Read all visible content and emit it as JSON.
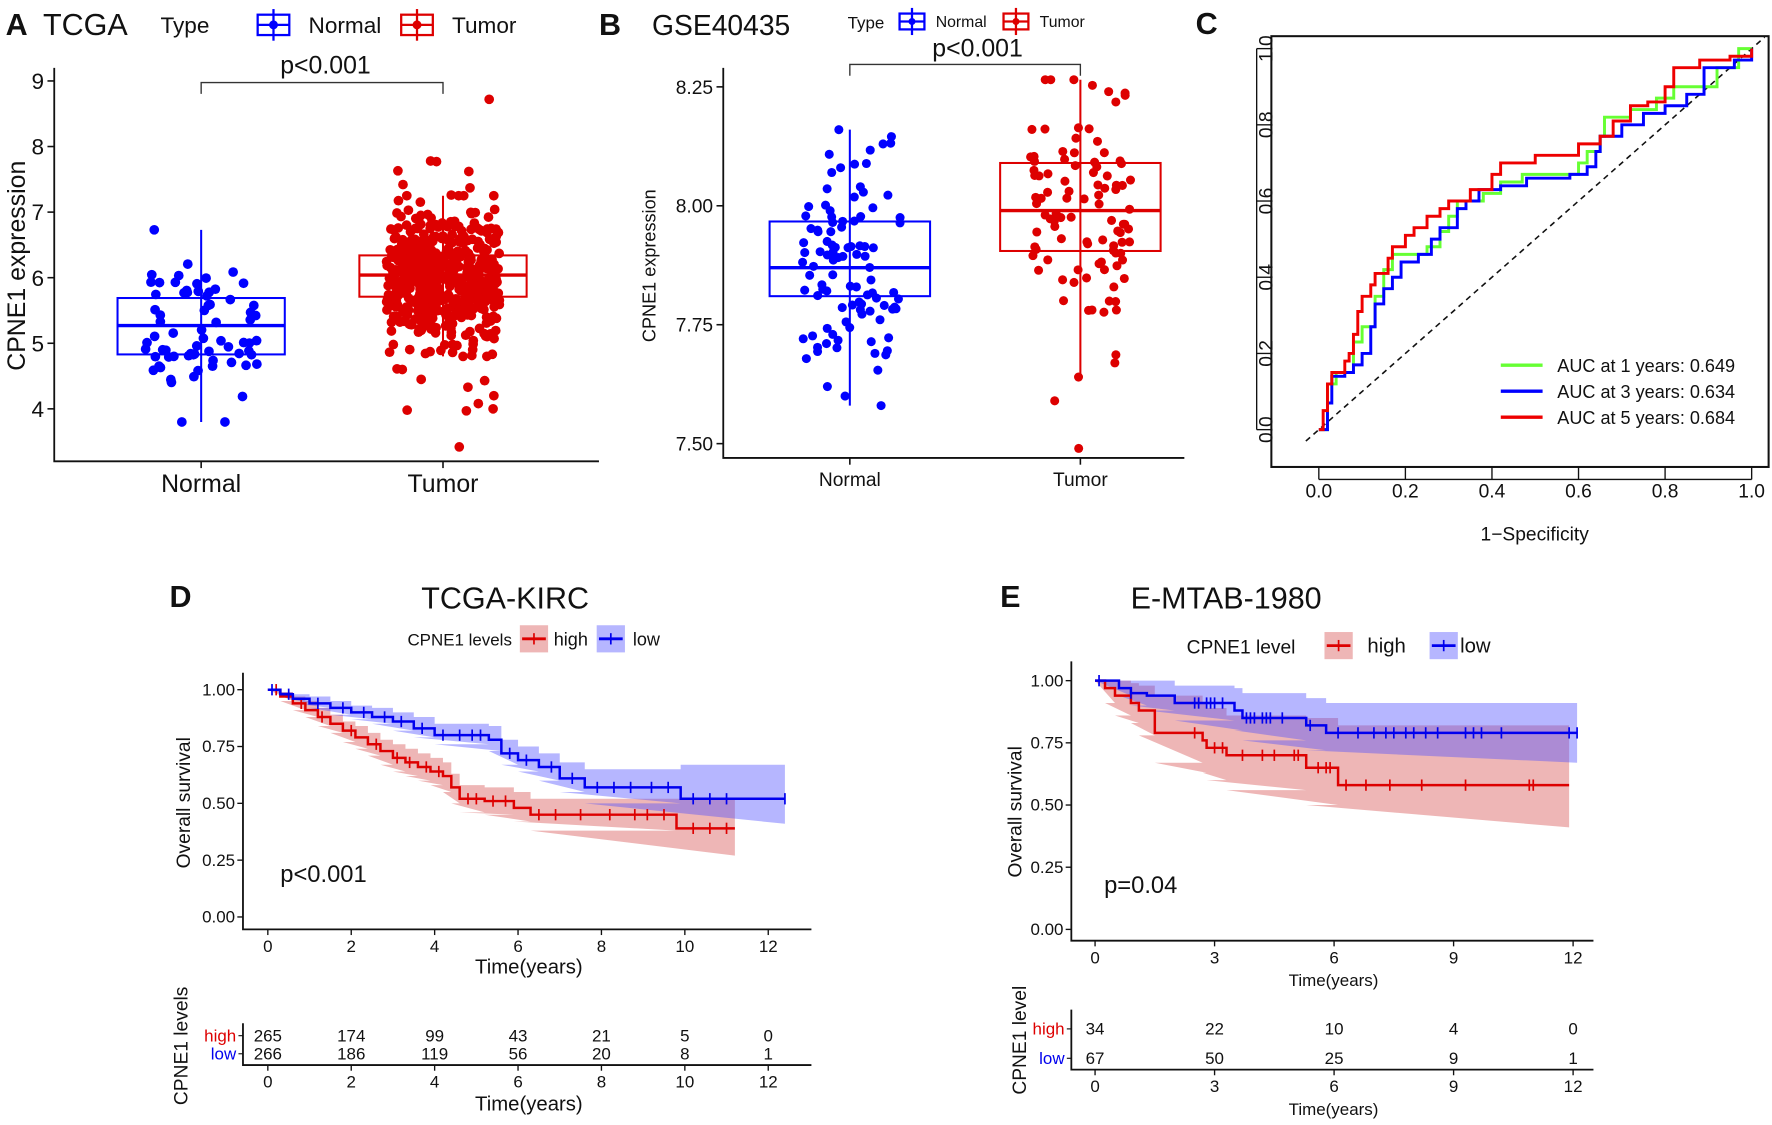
{
  "chart_data": [
    {
      "panel": "A",
      "type": "box",
      "title": "TCGA",
      "ylabel": "CPNE1 expression",
      "legend_title": "Type",
      "legend_position": "top",
      "categories": [
        "Normal",
        "Tumor"
      ],
      "yticks": [
        "4",
        "5",
        "6",
        "7",
        "8",
        "9"
      ],
      "ylim": [
        3.2,
        9.2
      ],
      "annotation": "p<0.001",
      "series": [
        {
          "name": "Normal",
          "color": "#0000FF",
          "box": {
            "whisker_low": 3.8,
            "q1": 4.83,
            "median": 5.27,
            "q3": 5.69,
            "whisker_high": 6.73
          },
          "center": 5.25,
          "spread": 0.6,
          "outliers": [
            3.8,
            3.8,
            6.73
          ]
        },
        {
          "name": "Tumor",
          "color": "#DD0000",
          "box": {
            "whisker_low": 4.8,
            "q1": 5.71,
            "median": 6.04,
            "q3": 6.34,
            "whisker_high": 7.25
          },
          "center": 6.02,
          "spread": 0.5,
          "outliers": [
            8.72,
            7.78,
            7.77,
            7.63,
            7.62,
            7.42,
            7.37,
            7.26,
            3.42,
            3.97,
            3.98,
            4.0,
            4.08,
            4.2,
            4.33,
            4.43,
            4.45,
            4.6,
            4.61
          ]
        }
      ]
    },
    {
      "panel": "B",
      "type": "box",
      "title": "GSE40435",
      "ylabel": "CPNE1 expression",
      "legend_title": "Type",
      "legend_position": "top",
      "categories": [
        "Normal",
        "Tumor"
      ],
      "yticks": [
        "7.50",
        "7.75",
        "8.00",
        "8.25"
      ],
      "ylim": [
        7.47,
        8.29
      ],
      "annotation": "p<0.001",
      "series": [
        {
          "name": "Normal",
          "color": "#0000FF",
          "box": {
            "whisker_low": 7.58,
            "q1": 7.81,
            "median": 7.87,
            "q3": 7.967,
            "whisker_high": 8.16
          },
          "center": 7.88,
          "spread": 0.12,
          "outliers": [
            7.58,
            7.6,
            7.62,
            8.16,
            8.13,
            8.08
          ]
        },
        {
          "name": "Tumor",
          "color": "#DD0000",
          "box": {
            "whisker_low": 7.64,
            "q1": 7.905,
            "median": 7.99,
            "q3": 8.09,
            "whisker_high": 8.265
          },
          "center": 7.99,
          "spread": 0.13,
          "outliers": [
            7.49,
            7.59,
            7.64,
            8.265,
            8.265,
            8.24
          ]
        }
      ]
    },
    {
      "panel": "C",
      "type": "line",
      "xlabel": "1−Specificity",
      "xticks": [
        "0.0",
        "0.2",
        "0.4",
        "0.6",
        "0.8",
        "1.0"
      ],
      "yticks": [
        "0.0",
        "0.2",
        "0.4",
        "0.6",
        "0.8",
        "1.0"
      ],
      "xlim": [
        0,
        1
      ],
      "ylim": [
        0,
        1
      ],
      "legend_position": "bottom-right",
      "reference_line": "diagonal dashed",
      "series": [
        {
          "name": "AUC at 1 years: 0.649",
          "color": "#66FF33",
          "x": [
            0,
            0.02,
            0.04,
            0.08,
            0.1,
            0.13,
            0.15,
            0.17,
            0.23,
            0.25,
            0.28,
            0.3,
            0.32,
            0.38,
            0.42,
            0.47,
            0.58,
            0.6,
            0.62,
            0.65,
            0.66,
            0.72,
            0.78,
            0.82,
            0.9,
            0.92,
            0.97,
            1
          ],
          "y": [
            0,
            0.12,
            0.15,
            0.23,
            0.27,
            0.35,
            0.42,
            0.46,
            0.46,
            0.48,
            0.52,
            0.56,
            0.6,
            0.62,
            0.65,
            0.67,
            0.67,
            0.7,
            0.73,
            0.77,
            0.82,
            0.84,
            0.87,
            0.9,
            0.9,
            0.95,
            1,
            1
          ]
        },
        {
          "name": "AUC at 3 years: 0.634",
          "color": "#0000FF",
          "x": [
            0,
            0.02,
            0.03,
            0.06,
            0.08,
            0.1,
            0.12,
            0.13,
            0.15,
            0.17,
            0.19,
            0.23,
            0.26,
            0.28,
            0.31,
            0.32,
            0.34,
            0.37,
            0.42,
            0.48,
            0.58,
            0.62,
            0.64,
            0.65,
            0.7,
            0.75,
            0.8,
            0.85,
            0.89,
            0.96,
            1
          ],
          "y": [
            0,
            0.07,
            0.14,
            0.15,
            0.17,
            0.2,
            0.27,
            0.33,
            0.37,
            0.4,
            0.44,
            0.46,
            0.5,
            0.53,
            0.53,
            0.58,
            0.6,
            0.63,
            0.64,
            0.66,
            0.67,
            0.69,
            0.73,
            0.77,
            0.8,
            0.83,
            0.85,
            0.88,
            0.95,
            0.97,
            1
          ]
        },
        {
          "name": "AUC at 5 years: 0.684",
          "color": "#EE0000",
          "x": [
            0,
            0.01,
            0.02,
            0.03,
            0.06,
            0.07,
            0.08,
            0.09,
            0.1,
            0.12,
            0.13,
            0.16,
            0.17,
            0.2,
            0.22,
            0.25,
            0.28,
            0.3,
            0.35,
            0.4,
            0.42,
            0.5,
            0.55,
            0.6,
            0.65,
            0.68,
            0.72,
            0.76,
            0.8,
            0.82,
            0.88,
            0.95,
            1
          ],
          "y": [
            0,
            0.05,
            0.12,
            0.15,
            0.18,
            0.2,
            0.25,
            0.31,
            0.35,
            0.38,
            0.41,
            0.45,
            0.48,
            0.51,
            0.53,
            0.56,
            0.58,
            0.6,
            0.63,
            0.67,
            0.7,
            0.72,
            0.72,
            0.75,
            0.77,
            0.81,
            0.85,
            0.86,
            0.9,
            0.95,
            0.97,
            0.98,
            1
          ]
        }
      ]
    },
    {
      "panel": "D",
      "type": "line",
      "subtype": "kaplan-meier",
      "title": "TCGA-KIRC",
      "xlabel": "Time(years)",
      "ylabel": "Overall survival",
      "legend_title": "CPNE1 levels",
      "legend_position": "top",
      "xticks": [
        "0",
        "2",
        "4",
        "6",
        "8",
        "10",
        "12"
      ],
      "yticks": [
        "0.00",
        "0.25",
        "0.50",
        "0.75",
        "1.00"
      ],
      "xlim": [
        0,
        12.8
      ],
      "ylim": [
        0,
        1
      ],
      "annotation": "p<0.001",
      "series": [
        {
          "name": "high",
          "color": "#DD0000",
          "fill": "rgba(215,80,80,0.42)",
          "t": [
            0,
            0.3,
            0.6,
            0.9,
            1.2,
            1.5,
            1.8,
            2.1,
            2.4,
            2.7,
            3.0,
            3.3,
            3.6,
            3.9,
            4.2,
            4.4,
            4.6,
            5.2,
            5.9,
            6.3,
            9.8,
            11.2
          ],
          "surv": [
            1,
            0.97,
            0.94,
            0.91,
            0.88,
            0.85,
            0.82,
            0.79,
            0.76,
            0.73,
            0.7,
            0.68,
            0.66,
            0.64,
            0.62,
            0.57,
            0.52,
            0.51,
            0.48,
            0.45,
            0.39,
            0.39
          ],
          "lower": [
            1,
            0.95,
            0.91,
            0.88,
            0.84,
            0.81,
            0.77,
            0.74,
            0.71,
            0.67,
            0.64,
            0.62,
            0.6,
            0.58,
            0.55,
            0.5,
            0.46,
            0.45,
            0.42,
            0.38,
            0.27,
            0.27
          ],
          "upper": [
            1,
            0.99,
            0.97,
            0.95,
            0.92,
            0.89,
            0.86,
            0.84,
            0.81,
            0.78,
            0.76,
            0.74,
            0.72,
            0.7,
            0.68,
            0.63,
            0.58,
            0.57,
            0.55,
            0.52,
            0.52,
            0.52
          ],
          "censored": [
            0.2,
            0.8,
            1.3,
            2.0,
            2.6,
            3.1,
            3.4,
            3.8,
            4.1,
            4.8,
            5.0,
            5.4,
            5.7,
            6.5,
            6.9,
            7.5,
            8.2,
            8.8,
            9.1,
            9.5,
            10.2,
            10.6,
            11.0
          ]
        },
        {
          "name": "low",
          "color": "#0000EE",
          "fill": "rgba(80,80,255,0.42)",
          "t": [
            0,
            0.3,
            0.6,
            1.0,
            1.5,
            2.0,
            2.5,
            3.0,
            3.5,
            4.0,
            5.3,
            5.6,
            6.0,
            6.5,
            7.0,
            7.6,
            9.9,
            12.4
          ],
          "surv": [
            1,
            0.98,
            0.96,
            0.94,
            0.92,
            0.9,
            0.88,
            0.86,
            0.83,
            0.8,
            0.78,
            0.72,
            0.69,
            0.66,
            0.61,
            0.57,
            0.52,
            0.52
          ],
          "lower": [
            1,
            0.97,
            0.94,
            0.92,
            0.89,
            0.87,
            0.85,
            0.82,
            0.79,
            0.76,
            0.73,
            0.67,
            0.64,
            0.6,
            0.55,
            0.5,
            0.41,
            0.41
          ],
          "upper": [
            1,
            0.99,
            0.98,
            0.97,
            0.95,
            0.93,
            0.92,
            0.9,
            0.88,
            0.85,
            0.84,
            0.78,
            0.75,
            0.72,
            0.68,
            0.65,
            0.67,
            0.67
          ],
          "censored": [
            0.1,
            0.5,
            1.2,
            1.8,
            2.3,
            2.8,
            3.2,
            3.7,
            4.2,
            4.6,
            4.9,
            5.1,
            5.8,
            6.2,
            6.8,
            7.3,
            7.9,
            8.3,
            8.7,
            9.2,
            9.6,
            10.2,
            10.6,
            11.0,
            12.4
          ]
        }
      ],
      "risk_table": {
        "ylabel": "CPNE1 levels",
        "xlabel": "Time(years)",
        "times": [
          "0",
          "2",
          "4",
          "6",
          "8",
          "10",
          "12"
        ],
        "rows": [
          {
            "name": "high",
            "color": "#DD0000",
            "values": [
              "265",
              "174",
              "99",
              "43",
              "21",
              "5",
              "0"
            ]
          },
          {
            "name": "low",
            "color": "#0000EE",
            "values": [
              "266",
              "186",
              "119",
              "56",
              "20",
              "8",
              "1"
            ]
          }
        ]
      }
    },
    {
      "panel": "E",
      "type": "line",
      "subtype": "kaplan-meier",
      "title": "E-MTAB-1980",
      "xlabel": "Time(years)",
      "ylabel": "Overall survival",
      "legend_title": "CPNE1 level",
      "legend_position": "top",
      "xticks": [
        "0",
        "3",
        "6",
        "9",
        "12"
      ],
      "yticks": [
        "0.00",
        "0.25",
        "0.50",
        "0.75",
        "1.00"
      ],
      "xlim": [
        0,
        12.5
      ],
      "ylim": [
        0,
        1
      ],
      "annotation": "p=0.04",
      "series": [
        {
          "name": "high",
          "color": "#DD0000",
          "fill": "rgba(215,80,80,0.42)",
          "t": [
            0,
            0.25,
            0.5,
            0.9,
            1.1,
            1.5,
            2.7,
            2.8,
            3.3,
            5.3,
            6.1,
            11.9
          ],
          "surv": [
            1,
            0.97,
            0.94,
            0.91,
            0.88,
            0.79,
            0.76,
            0.73,
            0.7,
            0.65,
            0.58,
            0.58
          ],
          "lower": [
            1,
            0.91,
            0.86,
            0.83,
            0.78,
            0.67,
            0.63,
            0.6,
            0.56,
            0.5,
            0.41,
            0.41
          ],
          "upper": [
            1,
            1,
            1,
            0.99,
            0.98,
            0.94,
            0.91,
            0.89,
            0.86,
            0.85,
            0.82,
            0.82
          ],
          "censored": [
            2.5,
            3.0,
            3.2,
            3.7,
            4.2,
            4.5,
            5.0,
            5.1,
            5.6,
            5.8,
            5.9,
            6.3,
            6.8,
            7.4,
            8.2,
            9.3,
            10.9,
            11.0
          ]
        },
        {
          "name": "low",
          "color": "#0000EE",
          "fill": "rgba(80,80,255,0.42)",
          "t": [
            0,
            0.6,
            0.9,
            1.3,
            2.0,
            3.5,
            3.7,
            5.3,
            5.8,
            12.1
          ],
          "surv": [
            1,
            0.97,
            0.95,
            0.94,
            0.91,
            0.88,
            0.85,
            0.82,
            0.79,
            0.79
          ],
          "lower": [
            1,
            0.94,
            0.9,
            0.88,
            0.84,
            0.8,
            0.76,
            0.72,
            0.67,
            0.67
          ],
          "upper": [
            1,
            1,
            1,
            1,
            0.98,
            0.97,
            0.95,
            0.93,
            0.91,
            0.91
          ],
          "censored": [
            0.1,
            0.9,
            2.5,
            2.6,
            2.8,
            2.9,
            3.0,
            3.2,
            3.8,
            3.9,
            4.0,
            4.2,
            4.3,
            4.4,
            4.7,
            5.4,
            6.1,
            6.6,
            7.0,
            7.3,
            7.5,
            7.8,
            8.0,
            8.3,
            8.6,
            9.3,
            9.5,
            9.7,
            10.2,
            11.9,
            12.1
          ]
        }
      ],
      "risk_table": {
        "ylabel": "CPNE1 level",
        "xlabel": "Time(years)",
        "times": [
          "0",
          "3",
          "6",
          "9",
          "12"
        ],
        "rows": [
          {
            "name": "high",
            "color": "#DD0000",
            "values": [
              "34",
              "22",
              "10",
              "4",
              "0"
            ]
          },
          {
            "name": "low",
            "color": "#0000EE",
            "values": [
              "67",
              "50",
              "25",
              "9",
              "1"
            ]
          }
        ]
      }
    }
  ]
}
